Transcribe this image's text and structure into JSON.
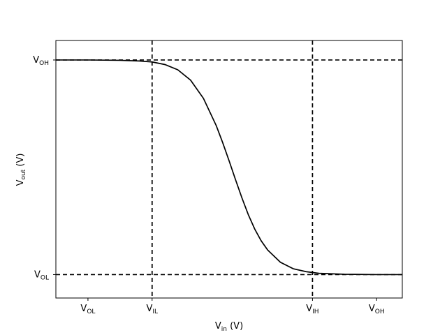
{
  "chart_data": {
    "type": "line",
    "title": "",
    "xlabel": {
      "main": "V",
      "sub": "in",
      "suffix": " (V)"
    },
    "ylabel": {
      "main": "V",
      "sub": "out",
      "suffix": " (V)"
    },
    "xlim": [
      -0.5,
      4.9
    ],
    "ylim": [
      -0.36,
      3.6
    ],
    "grid": false,
    "x_ticks": [
      {
        "value": 0.0,
        "main": "V",
        "sub": "OL"
      },
      {
        "value": 1.0,
        "main": "V",
        "sub": "IL"
      },
      {
        "value": 3.5,
        "main": "V",
        "sub": "IH"
      },
      {
        "value": 4.5,
        "main": "V",
        "sub": "OH"
      }
    ],
    "y_ticks": [
      {
        "value": 0.0,
        "main": "V",
        "sub": "OL"
      },
      {
        "value": 3.3,
        "main": "V",
        "sub": "OH"
      }
    ],
    "vertical_reference_lines": [
      1.0,
      3.5
    ],
    "horizontal_reference_lines": [
      0.0,
      3.3
    ],
    "series": [
      {
        "x": [
          -0.5,
          0.0,
          0.5,
          0.8,
          1.0,
          1.2,
          1.4,
          1.6,
          1.8,
          2.0,
          2.1,
          2.2,
          2.3,
          2.4,
          2.5,
          2.6,
          2.7,
          2.8,
          3.0,
          3.2,
          3.4,
          3.6,
          4.0,
          4.5,
          4.9
        ],
        "y": [
          3.3,
          3.3,
          3.295,
          3.285,
          3.27,
          3.23,
          3.15,
          2.99,
          2.71,
          2.29,
          2.03,
          1.75,
          1.46,
          1.18,
          0.92,
          0.7,
          0.52,
          0.38,
          0.19,
          0.09,
          0.045,
          0.02,
          0.005,
          0.0,
          0.0
        ],
        "color": "#000000",
        "style": "solid"
      }
    ]
  }
}
